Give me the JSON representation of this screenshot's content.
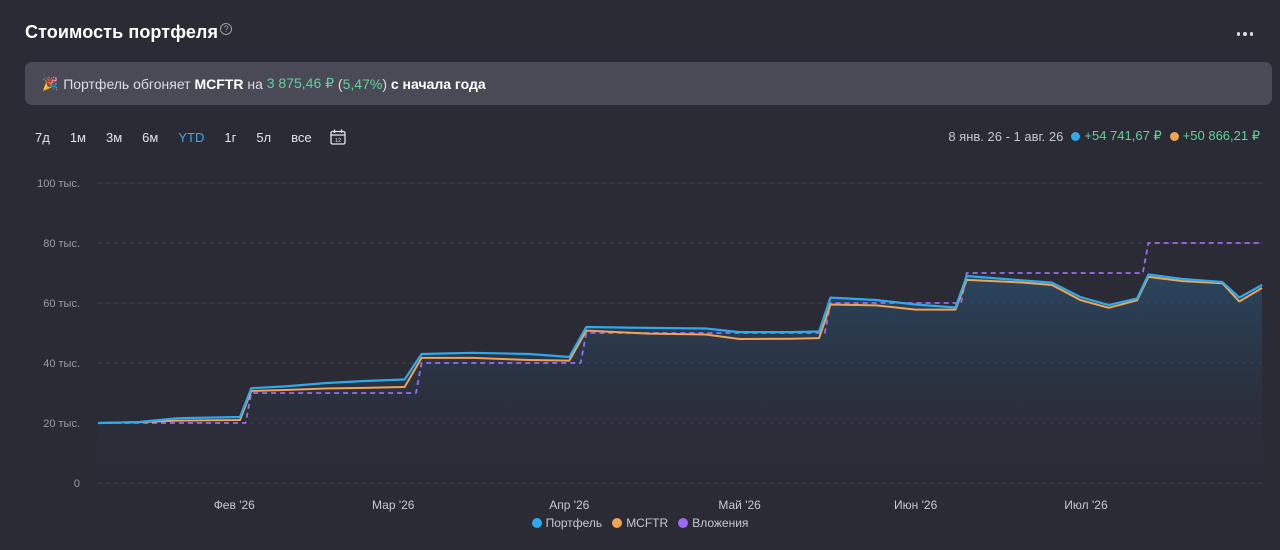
{
  "header": {
    "title": "Стоимость портфеля",
    "help_glyph": "?"
  },
  "banner": {
    "icon": "🎉",
    "text_before": "Портфель обгоняет ",
    "benchmark": "MCFTR",
    "text_mid": " на ",
    "amount": "3 875,46 ₽",
    "pct_open": " (",
    "pct": "5,47%",
    "pct_close": ") ",
    "text_after": "с начала года"
  },
  "periods": [
    "7д",
    "1м",
    "3м",
    "6м",
    "YTD",
    "1г",
    "5л",
    "все"
  ],
  "active_period": "YTD",
  "range": {
    "dates": "8 янв. 26 - 1 авг. 26",
    "portfolio_change": "+54 741,67 ₽",
    "benchmark_change": "+50 866,21 ₽"
  },
  "colors": {
    "portfolio": "#2ea9eb",
    "benchmark": "#f0a352",
    "contributions": "#9a6cf0",
    "positive": "#5fd39a",
    "active": "#3ea7ea"
  },
  "chart_data": {
    "type": "line",
    "x_tick_labels": [
      "Фев '26",
      "Мар '26",
      "Апр '26",
      "Май '26",
      "Июн '26",
      "Июл '26"
    ],
    "y_tick_labels": [
      "0",
      "20 тыс.",
      "40 тыс.",
      "60 тыс.",
      "80 тыс.",
      "100 тыс."
    ],
    "ylim": [
      0,
      100000
    ],
    "xlim": [
      "2026-01-08",
      "2026-08-01"
    ],
    "grid": true,
    "legend_position": "bottom-center",
    "series": [
      {
        "name": "Портфель",
        "points": [
          [
            "2026-01-08",
            20000
          ],
          [
            "2026-01-15",
            20300
          ],
          [
            "2026-01-22",
            21600
          ],
          [
            "2026-02-02",
            22000
          ],
          [
            "2026-02-04",
            31600
          ],
          [
            "2026-02-10",
            32200
          ],
          [
            "2026-02-17",
            33300
          ],
          [
            "2026-02-24",
            34000
          ],
          [
            "2026-03-03",
            34500
          ],
          [
            "2026-03-06",
            43000
          ],
          [
            "2026-03-15",
            43400
          ],
          [
            "2026-03-25",
            43000
          ],
          [
            "2026-04-01",
            42000
          ],
          [
            "2026-04-04",
            52000
          ],
          [
            "2026-04-15",
            51700
          ],
          [
            "2026-04-25",
            51500
          ],
          [
            "2026-05-01",
            50300
          ],
          [
            "2026-05-10",
            50300
          ],
          [
            "2026-05-15",
            50500
          ],
          [
            "2026-05-17",
            61800
          ],
          [
            "2026-05-25",
            61000
          ],
          [
            "2026-06-01",
            59500
          ],
          [
            "2026-06-08",
            58500
          ],
          [
            "2026-06-10",
            69000
          ],
          [
            "2026-06-20",
            67500
          ],
          [
            "2026-06-25",
            66800
          ],
          [
            "2026-06-30",
            62000
          ],
          [
            "2026-07-05",
            59300
          ],
          [
            "2026-07-10",
            61500
          ],
          [
            "2026-07-12",
            69500
          ],
          [
            "2026-07-18",
            68000
          ],
          [
            "2026-07-25",
            67000
          ],
          [
            "2026-07-28",
            61800
          ],
          [
            "2026-08-01",
            66000
          ]
        ]
      },
      {
        "name": "MCFTR",
        "points": [
          [
            "2026-01-08",
            20000
          ],
          [
            "2026-01-15",
            20300
          ],
          [
            "2026-01-22",
            20800
          ],
          [
            "2026-02-02",
            21000
          ],
          [
            "2026-02-04",
            30700
          ],
          [
            "2026-02-10",
            31000
          ],
          [
            "2026-02-17",
            31500
          ],
          [
            "2026-02-24",
            31700
          ],
          [
            "2026-03-03",
            32000
          ],
          [
            "2026-03-06",
            41700
          ],
          [
            "2026-03-15",
            41700
          ],
          [
            "2026-03-25",
            41000
          ],
          [
            "2026-04-01",
            40800
          ],
          [
            "2026-04-04",
            50800
          ],
          [
            "2026-04-15",
            49800
          ],
          [
            "2026-04-25",
            49500
          ],
          [
            "2026-05-01",
            48000
          ],
          [
            "2026-05-10",
            48100
          ],
          [
            "2026-05-15",
            48300
          ],
          [
            "2026-05-17",
            59500
          ],
          [
            "2026-05-25",
            59200
          ],
          [
            "2026-06-01",
            57800
          ],
          [
            "2026-06-08",
            57800
          ],
          [
            "2026-06-10",
            67700
          ],
          [
            "2026-06-20",
            66800
          ],
          [
            "2026-06-25",
            66000
          ],
          [
            "2026-06-30",
            61000
          ],
          [
            "2026-07-05",
            58400
          ],
          [
            "2026-07-10",
            60900
          ],
          [
            "2026-07-12",
            68700
          ],
          [
            "2026-07-18",
            67300
          ],
          [
            "2026-07-25",
            66600
          ],
          [
            "2026-07-28",
            60500
          ],
          [
            "2026-08-01",
            65000
          ]
        ]
      },
      {
        "name": "Вложения",
        "points": [
          [
            "2026-01-08",
            20000
          ],
          [
            "2026-02-03",
            20000
          ],
          [
            "2026-02-04",
            30000
          ],
          [
            "2026-03-05",
            30000
          ],
          [
            "2026-03-06",
            40000
          ],
          [
            "2026-04-03",
            40000
          ],
          [
            "2026-04-04",
            50000
          ],
          [
            "2026-05-16",
            50000
          ],
          [
            "2026-05-17",
            60000
          ],
          [
            "2026-06-09",
            60000
          ],
          [
            "2026-06-10",
            70000
          ],
          [
            "2026-07-11",
            70000
          ],
          [
            "2026-07-12",
            80000
          ],
          [
            "2026-08-01",
            80000
          ]
        ]
      }
    ]
  }
}
